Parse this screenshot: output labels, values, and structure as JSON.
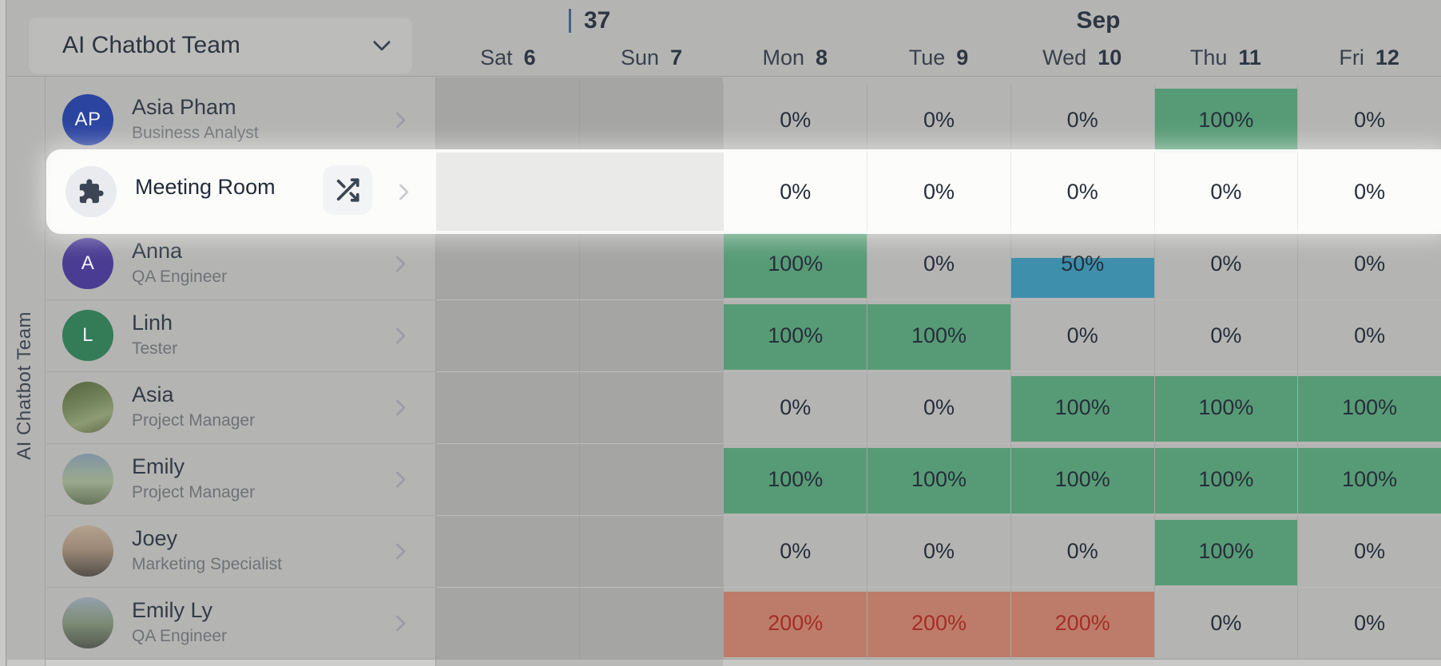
{
  "team_selector": {
    "label": "AI Chatbot Team"
  },
  "rail_label": "AI Chatbot Team",
  "timeline": {
    "week_number": "37",
    "month_label": "Sep",
    "days": [
      {
        "name": "Sat",
        "date": "6",
        "weekend": true
      },
      {
        "name": "Sun",
        "date": "7",
        "weekend": true
      },
      {
        "name": "Mon",
        "date": "8",
        "weekend": false
      },
      {
        "name": "Tue",
        "date": "9",
        "weekend": false
      },
      {
        "name": "Wed",
        "date": "10",
        "weekend": false
      },
      {
        "name": "Thu",
        "date": "11",
        "weekend": false
      },
      {
        "name": "Fri",
        "date": "12",
        "weekend": false
      }
    ]
  },
  "members": [
    {
      "name": "Asia Pham",
      "role": "Business Analyst",
      "highlight": false,
      "avatar": {
        "type": "initials",
        "text": "AP",
        "color": "#2b44a0"
      },
      "allocations": [
        null,
        null,
        {
          "label": "0%",
          "fill": "none"
        },
        {
          "label": "0%",
          "fill": "none"
        },
        {
          "label": "0%",
          "fill": "none"
        },
        {
          "label": "100%",
          "fill": "green"
        },
        {
          "label": "0%",
          "fill": "none"
        }
      ]
    },
    {
      "name": "Meeting Room",
      "role": null,
      "highlight": true,
      "has_shuffle_action": true,
      "avatar": {
        "type": "puzzle"
      },
      "allocations": [
        null,
        null,
        {
          "label": "0%",
          "fill": "none"
        },
        {
          "label": "0%",
          "fill": "none"
        },
        {
          "label": "0%",
          "fill": "none"
        },
        {
          "label": "0%",
          "fill": "none"
        },
        {
          "label": "0%",
          "fill": "none"
        }
      ]
    },
    {
      "name": "Anna",
      "role": "QA Engineer",
      "highlight": false,
      "avatar": {
        "type": "initials",
        "text": "A",
        "color": "#4a3c92"
      },
      "allocations": [
        null,
        null,
        {
          "label": "100%",
          "fill": "green"
        },
        {
          "label": "0%",
          "fill": "none"
        },
        {
          "label": "50%",
          "fill": "blue-half"
        },
        {
          "label": "0%",
          "fill": "none"
        },
        {
          "label": "0%",
          "fill": "none"
        }
      ]
    },
    {
      "name": "Linh",
      "role": "Tester",
      "highlight": false,
      "avatar": {
        "type": "initials",
        "text": "L",
        "color": "#337c57"
      },
      "allocations": [
        null,
        null,
        {
          "label": "100%",
          "fill": "green"
        },
        {
          "label": "100%",
          "fill": "green"
        },
        {
          "label": "0%",
          "fill": "none"
        },
        {
          "label": "0%",
          "fill": "none"
        },
        {
          "label": "0%",
          "fill": "none"
        }
      ]
    },
    {
      "name": "Asia",
      "role": "Project Manager",
      "highlight": false,
      "avatar": {
        "type": "photo",
        "variant": "forest"
      },
      "allocations": [
        null,
        null,
        {
          "label": "0%",
          "fill": "none"
        },
        {
          "label": "0%",
          "fill": "none"
        },
        {
          "label": "100%",
          "fill": "green"
        },
        {
          "label": "100%",
          "fill": "green"
        },
        {
          "label": "100%",
          "fill": "green"
        }
      ]
    },
    {
      "name": "Emily",
      "role": "Project Manager",
      "highlight": false,
      "avatar": {
        "type": "photo",
        "variant": "mountains"
      },
      "allocations": [
        null,
        null,
        {
          "label": "100%",
          "fill": "green"
        },
        {
          "label": "100%",
          "fill": "green"
        },
        {
          "label": "100%",
          "fill": "green"
        },
        {
          "label": "100%",
          "fill": "green"
        },
        {
          "label": "100%",
          "fill": "green"
        }
      ]
    },
    {
      "name": "Joey",
      "role": "Marketing Specialist",
      "highlight": false,
      "avatar": {
        "type": "photo",
        "variant": "portrait"
      },
      "allocations": [
        null,
        null,
        {
          "label": "0%",
          "fill": "none"
        },
        {
          "label": "0%",
          "fill": "none"
        },
        {
          "label": "0%",
          "fill": "none"
        },
        {
          "label": "100%",
          "fill": "green"
        },
        {
          "label": "0%",
          "fill": "none"
        }
      ]
    },
    {
      "name": "Emily Ly",
      "role": "QA Engineer",
      "highlight": false,
      "avatar": {
        "type": "photo",
        "variant": "hills"
      },
      "allocations": [
        null,
        null,
        {
          "label": "200%",
          "fill": "red"
        },
        {
          "label": "200%",
          "fill": "red"
        },
        {
          "label": "200%",
          "fill": "red"
        },
        {
          "label": "0%",
          "fill": "none"
        },
        {
          "label": "0%",
          "fill": "none"
        }
      ]
    }
  ],
  "colors": {
    "page_dimmed": "#b4b4b2",
    "weekend_dimmed": "#a5a5a3",
    "allocation_full": "#579b76",
    "allocation_half": "#3e8fac",
    "allocation_over_bg": "#bd7c6a",
    "allocation_over_text": "#a42e26",
    "highlight_row_bg": "#fcfcfb",
    "highlight_weekend": "#eaeae8",
    "week_tick": "#46618c",
    "avatar_asia_pham": "#2b44a0",
    "avatar_anna": "#4a3c92",
    "avatar_linh": "#337c57"
  }
}
